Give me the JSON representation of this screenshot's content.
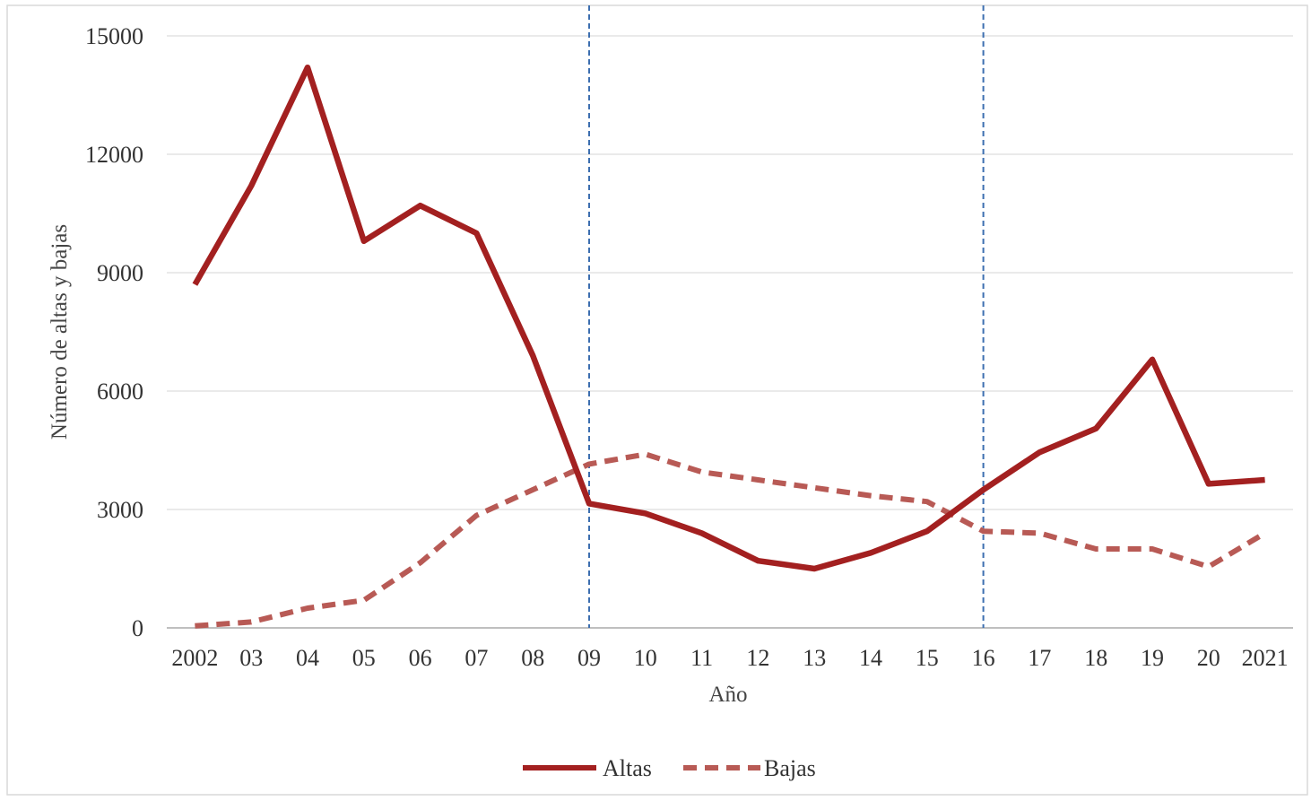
{
  "chart_data": {
    "type": "line",
    "title": "",
    "xlabel": "Año",
    "ylabel": "Número de altas y bajas",
    "x_ticks": [
      "2002",
      "03",
      "04",
      "05",
      "06",
      "07",
      "08",
      "09",
      "10",
      "11",
      "12",
      "13",
      "14",
      "15",
      "16",
      "17",
      "18",
      "19",
      "20",
      "2021"
    ],
    "y_ticks": [
      "0",
      "3000",
      "6000",
      "9000",
      "12000",
      "15000"
    ],
    "ylim": [
      0,
      15000
    ],
    "grid": "horizontal",
    "legend": "bottom-center",
    "vertical_markers": [
      "09",
      "16"
    ],
    "series": [
      {
        "name": "Altas",
        "style": "solid",
        "color": "#a32020",
        "values": [
          8700,
          11200,
          14200,
          9800,
          10700,
          10000,
          6900,
          3150,
          2900,
          2400,
          1700,
          1500,
          1900,
          2450,
          3500,
          4450,
          5050,
          6800,
          3650,
          3750
        ]
      },
      {
        "name": "Bajas",
        "style": "dashed",
        "color": "#b85a55",
        "values": [
          50,
          150,
          500,
          700,
          1650,
          2850,
          3500,
          4150,
          4400,
          3950,
          3750,
          3550,
          3350,
          3200,
          2450,
          2400,
          2000,
          2000,
          1550,
          2400
        ]
      }
    ]
  }
}
